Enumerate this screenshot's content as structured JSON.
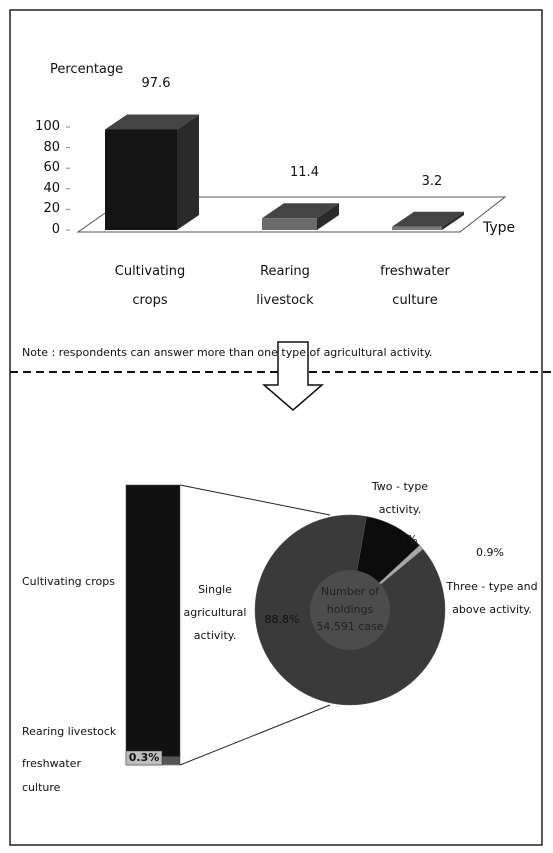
{
  "chart_data": [
    {
      "type": "bar",
      "y_label": "Percentage",
      "x_label": "Type",
      "categories": [
        "Cultivating crops",
        "Rearing livestock",
        "freshwater culture"
      ],
      "values": [
        97.6,
        11.4,
        3.2
      ],
      "colors": [
        "#141414",
        "#6a6a6a",
        "#7a7a7a"
      ],
      "ylim": [
        0,
        100
      ],
      "yticks": [
        0,
        20,
        40,
        60,
        80,
        100
      ],
      "note": "Note : respondents can answer  more than one type of agricultural activity."
    },
    {
      "type": "stacked_bar",
      "categories": [
        "Cultivating crops",
        "Rearing livestock",
        "freshwater culture"
      ],
      "values": [
        97.0,
        2.7,
        0.3
      ],
      "value_labels": [
        null,
        null,
        "0.3%"
      ],
      "colors": [
        "#111111",
        "#555555",
        "#bdbdbd"
      ]
    },
    {
      "type": "pie",
      "categories": [
        "Single agricultural activity.",
        "Two - type activity.",
        "Three - type and above activity."
      ],
      "values": [
        88.8,
        10.3,
        0.9
      ],
      "value_labels": [
        "88.8%",
        "10.3%",
        "0.9%"
      ],
      "colors": [
        "#3a3a3a",
        "#0c0c0c",
        "#a8a8a8"
      ],
      "center_label": "Number of holdings 54,591 case"
    }
  ]
}
